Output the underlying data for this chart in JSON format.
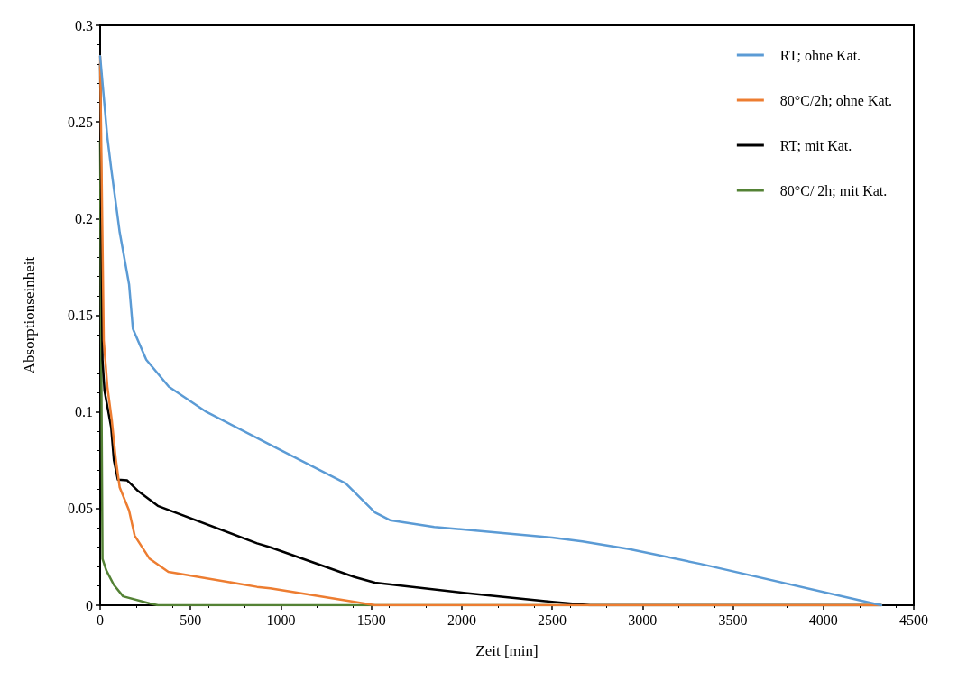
{
  "chart_data": {
    "type": "line",
    "xlabel": "Zeit [min]",
    "ylabel": "Absorptionseinheit",
    "xlim": [
      0,
      4500
    ],
    "xticks": [
      0,
      500,
      1000,
      1500,
      2000,
      2500,
      3000,
      3500,
      4000,
      4500
    ],
    "ylim": [
      0,
      0.3
    ],
    "yticks": [
      0,
      0.05,
      0.1,
      0.15,
      0.2,
      0.25,
      0.3
    ],
    "grid": false,
    "legend": "top right",
    "marker": "none",
    "line_style": "solid",
    "series": [
      {
        "name": "RT; ohne Kat.",
        "color": "#5b9bd5",
        "x": [
          0,
          40,
          61,
          108,
          160,
          181,
          255,
          380,
          588,
          941,
          1358,
          1520,
          1603,
          1848,
          2500,
          2667,
          2926,
          3319,
          4320
        ],
        "values": [
          0.284,
          0.242,
          0.226,
          0.193,
          0.166,
          0.143,
          0.127,
          0.113,
          0.1,
          0.083,
          0.063,
          0.048,
          0.044,
          0.0405,
          0.035,
          0.033,
          0.029,
          0.0214,
          0
        ]
      },
      {
        "name": "80°C/2h; ohne Kat.",
        "color": "#ed7d31",
        "x": [
          0,
          20,
          40,
          64,
          86,
          108,
          160,
          191,
          274,
          377,
          868,
          941,
          1407,
          1520,
          4320
        ],
        "values": [
          0.284,
          0.137,
          0.113,
          0.096,
          0.076,
          0.061,
          0.049,
          0.036,
          0.024,
          0.0173,
          0.0095,
          0.0087,
          0.0018,
          0,
          0
        ]
      },
      {
        "name": "RT; mit Kat.",
        "color": "#000000",
        "x": [
          0,
          13,
          24,
          61,
          76,
          98,
          150,
          211,
          319,
          868,
          941,
          1407,
          1520,
          2010,
          2500,
          2710,
          4320
        ],
        "values": [
          0.28,
          0.127,
          0.111,
          0.092,
          0.075,
          0.065,
          0.0646,
          0.059,
          0.0514,
          0.032,
          0.03,
          0.0146,
          0.0117,
          0.0064,
          0.0018,
          0,
          0
        ]
      },
      {
        "name": "80°C/ 2h; mit Kat.",
        "color": "#548235",
        "x": [
          0,
          8,
          13,
          34,
          76,
          127,
          274,
          320,
          4320
        ],
        "values": [
          0.24,
          0.1,
          0.024,
          0.018,
          0.0105,
          0.0046,
          0.0009,
          0,
          0
        ]
      }
    ]
  }
}
